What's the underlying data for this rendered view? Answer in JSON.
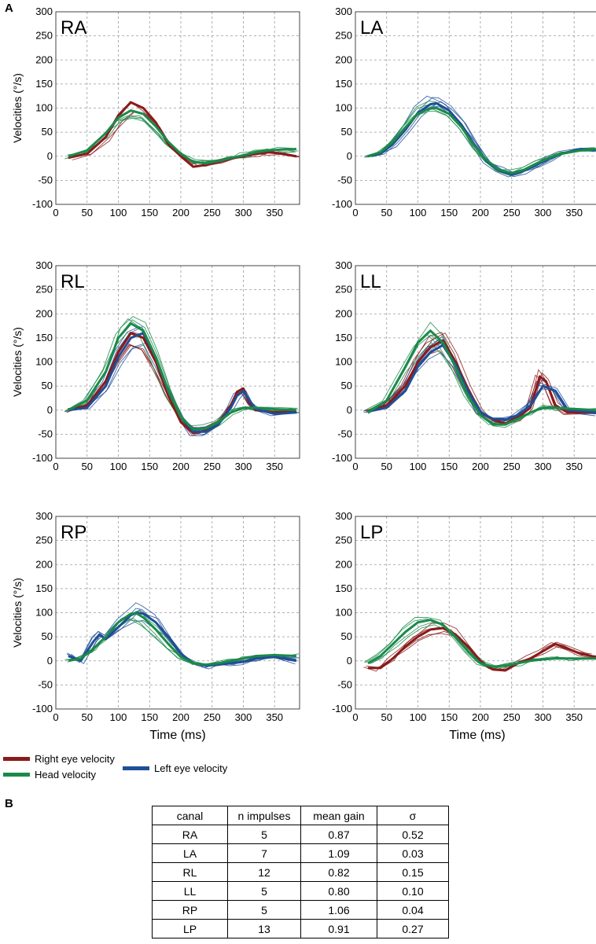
{
  "figure": {
    "panel_a_letter": "A",
    "panel_b_letter": "B"
  },
  "colors": {
    "right_eye": "#8b1a1a",
    "head": "#1a8a4a",
    "left_eye": "#1f4e96",
    "grid": "#9a9a9a"
  },
  "legend": {
    "right_eye": "Right eye velocity",
    "head": "Head velocity",
    "left_eye": "Left eye velocity"
  },
  "chart_data": [
    {
      "type": "line",
      "title": "RA",
      "ylabel": "Velocities (°/s)",
      "xlabel": "",
      "xlim": [
        0,
        390
      ],
      "ylim": [
        -100,
        300
      ],
      "xticks": [
        0,
        50,
        100,
        150,
        200,
        250,
        300,
        350
      ],
      "yticks": [
        -100,
        -50,
        0,
        50,
        100,
        150,
        200,
        250,
        300
      ],
      "series": [
        {
          "name": "Right eye velocity",
          "role": "right",
          "x": [
            20,
            50,
            80,
            100,
            120,
            140,
            160,
            180,
            200,
            220,
            240,
            260,
            280,
            300,
            320,
            340,
            360,
            385
          ],
          "values": [
            -3,
            5,
            40,
            85,
            112,
            100,
            70,
            25,
            0,
            -22,
            -18,
            -12,
            -5,
            0,
            5,
            8,
            6,
            0
          ]
        },
        {
          "name": "Head velocity",
          "role": "head",
          "x": [
            20,
            50,
            80,
            100,
            120,
            140,
            160,
            180,
            200,
            220,
            240,
            260,
            280,
            300,
            320,
            340,
            360,
            385
          ],
          "values": [
            0,
            12,
            48,
            80,
            95,
            88,
            62,
            30,
            5,
            -12,
            -15,
            -10,
            -4,
            2,
            8,
            12,
            14,
            15
          ]
        }
      ]
    },
    {
      "type": "line",
      "title": "LA",
      "ylabel": "Velocities (°/s)",
      "xlabel": "",
      "xlim": [
        0,
        390
      ],
      "ylim": [
        -100,
        300
      ],
      "xticks": [
        0,
        50,
        100,
        150,
        200,
        250,
        300,
        350
      ],
      "yticks": [
        -100,
        -50,
        0,
        50,
        100,
        150,
        200,
        250,
        300
      ],
      "series": [
        {
          "name": "Left eye velocity",
          "role": "left",
          "x": [
            20,
            40,
            60,
            80,
            100,
            120,
            130,
            150,
            170,
            190,
            210,
            230,
            250,
            270,
            290,
            310,
            330,
            360,
            385
          ],
          "values": [
            0,
            5,
            25,
            55,
            90,
            108,
            110,
            95,
            65,
            25,
            -10,
            -30,
            -38,
            -30,
            -18,
            -5,
            5,
            15,
            12
          ]
        },
        {
          "name": "Head velocity",
          "role": "head",
          "x": [
            20,
            40,
            60,
            80,
            100,
            120,
            130,
            150,
            170,
            190,
            210,
            230,
            250,
            270,
            290,
            310,
            330,
            360,
            385
          ],
          "values": [
            0,
            8,
            30,
            60,
            88,
            100,
            100,
            88,
            60,
            22,
            -8,
            -28,
            -35,
            -28,
            -15,
            -3,
            5,
            12,
            15
          ]
        }
      ]
    },
    {
      "type": "line",
      "title": "RL",
      "ylabel": "Velocities (°/s)",
      "xlabel": "",
      "xlim": [
        0,
        390
      ],
      "ylim": [
        -100,
        300
      ],
      "xticks": [
        0,
        50,
        100,
        150,
        200,
        250,
        300,
        350
      ],
      "yticks": [
        -100,
        -50,
        0,
        50,
        100,
        150,
        200,
        250,
        300
      ],
      "series": [
        {
          "name": "Right eye velocity",
          "role": "right",
          "x": [
            20,
            50,
            80,
            100,
            120,
            140,
            160,
            180,
            200,
            220,
            240,
            260,
            280,
            290,
            300,
            310,
            320,
            350,
            385
          ],
          "values": [
            0,
            10,
            60,
            120,
            160,
            150,
            100,
            30,
            -25,
            -48,
            -42,
            -30,
            10,
            38,
            45,
            15,
            0,
            -5,
            -3
          ]
        },
        {
          "name": "Left eye velocity",
          "role": "left",
          "x": [
            20,
            50,
            80,
            100,
            120,
            140,
            160,
            180,
            200,
            220,
            240,
            260,
            280,
            290,
            300,
            310,
            320,
            350,
            385
          ],
          "values": [
            0,
            5,
            50,
            110,
            150,
            160,
            110,
            40,
            -15,
            -45,
            -45,
            -30,
            5,
            30,
            40,
            20,
            2,
            -8,
            -5
          ]
        },
        {
          "name": "Head velocity",
          "role": "head",
          "x": [
            20,
            50,
            80,
            100,
            120,
            140,
            160,
            180,
            200,
            220,
            240,
            260,
            280,
            290,
            300,
            310,
            320,
            350,
            385
          ],
          "values": [
            0,
            20,
            80,
            150,
            180,
            165,
            110,
            40,
            -15,
            -40,
            -38,
            -25,
            -5,
            0,
            5,
            5,
            5,
            2,
            0
          ]
        }
      ]
    },
    {
      "type": "line",
      "title": "LL",
      "ylabel": "Velocities (°/s)",
      "xlabel": "",
      "xlim": [
        0,
        390
      ],
      "ylim": [
        -100,
        300
      ],
      "xticks": [
        0,
        50,
        100,
        150,
        200,
        250,
        300,
        350
      ],
      "yticks": [
        -100,
        -50,
        0,
        50,
        100,
        150,
        200,
        250,
        300
      ],
      "series": [
        {
          "name": "Right eye velocity",
          "role": "right",
          "x": [
            20,
            50,
            80,
            100,
            120,
            140,
            160,
            180,
            200,
            220,
            240,
            260,
            280,
            295,
            305,
            320,
            340,
            385
          ],
          "values": [
            -3,
            10,
            50,
            100,
            130,
            145,
            100,
            45,
            -5,
            -20,
            -28,
            -15,
            5,
            70,
            60,
            10,
            -5,
            -5
          ]
        },
        {
          "name": "Left eye velocity",
          "role": "left",
          "x": [
            20,
            50,
            80,
            100,
            120,
            140,
            160,
            180,
            200,
            220,
            240,
            260,
            280,
            300,
            320,
            340,
            385
          ],
          "values": [
            -3,
            5,
            40,
            90,
            120,
            135,
            95,
            40,
            -5,
            -18,
            -20,
            -10,
            10,
            50,
            40,
            0,
            -5
          ]
        },
        {
          "name": "Head velocity",
          "role": "head",
          "x": [
            20,
            50,
            80,
            100,
            120,
            140,
            160,
            180,
            200,
            220,
            240,
            260,
            280,
            300,
            320,
            340,
            385
          ],
          "values": [
            -5,
            20,
            90,
            140,
            165,
            140,
            90,
            30,
            -10,
            -30,
            -30,
            -18,
            -5,
            5,
            5,
            3,
            0
          ]
        }
      ]
    },
    {
      "type": "line",
      "title": "RP",
      "ylabel": "Velocities (°/s)",
      "xlabel": "Time (ms)",
      "xlim": [
        0,
        390
      ],
      "ylim": [
        -100,
        300
      ],
      "xticks": [
        0,
        50,
        100,
        150,
        200,
        250,
        300,
        350
      ],
      "yticks": [
        -100,
        -50,
        0,
        50,
        100,
        150,
        200,
        250,
        300
      ],
      "series": [
        {
          "name": "Left eye velocity",
          "role": "left",
          "x": [
            20,
            40,
            60,
            70,
            80,
            100,
            120,
            130,
            140,
            160,
            180,
            200,
            220,
            240,
            260,
            280,
            300,
            320,
            350,
            385
          ],
          "values": [
            10,
            0,
            40,
            55,
            45,
            70,
            95,
            100,
            98,
            80,
            50,
            15,
            -5,
            -10,
            -8,
            -5,
            -2,
            5,
            8,
            0
          ]
        },
        {
          "name": "Head velocity",
          "role": "head",
          "x": [
            20,
            40,
            60,
            70,
            80,
            100,
            120,
            130,
            140,
            160,
            180,
            200,
            220,
            240,
            260,
            280,
            300,
            320,
            350,
            385
          ],
          "values": [
            0,
            5,
            25,
            38,
            50,
            80,
            98,
            98,
            90,
            65,
            35,
            8,
            -5,
            -8,
            -5,
            0,
            5,
            10,
            12,
            10
          ]
        }
      ]
    },
    {
      "type": "line",
      "title": "LP",
      "ylabel": "Velocities (°/s)",
      "xlabel": "Time (ms)",
      "xlim": [
        0,
        390
      ],
      "ylim": [
        -100,
        300
      ],
      "xticks": [
        0,
        50,
        100,
        150,
        200,
        250,
        300,
        350
      ],
      "yticks": [
        -100,
        -50,
        0,
        50,
        100,
        150,
        200,
        250,
        300
      ],
      "series": [
        {
          "name": "Right eye velocity",
          "role": "right",
          "x": [
            20,
            40,
            60,
            80,
            100,
            120,
            140,
            160,
            180,
            200,
            220,
            240,
            260,
            280,
            300,
            320,
            340,
            360,
            385
          ],
          "values": [
            -15,
            -15,
            5,
            30,
            50,
            65,
            68,
            55,
            30,
            0,
            -18,
            -20,
            -5,
            5,
            20,
            35,
            25,
            15,
            8
          ]
        },
        {
          "name": "Head velocity",
          "role": "head",
          "x": [
            20,
            40,
            60,
            80,
            100,
            120,
            140,
            160,
            180,
            200,
            220,
            240,
            260,
            280,
            300,
            320,
            340,
            360,
            385
          ],
          "values": [
            -5,
            10,
            35,
            60,
            80,
            85,
            75,
            50,
            20,
            -5,
            -12,
            -10,
            -5,
            0,
            3,
            5,
            5,
            5,
            5
          ]
        }
      ]
    },
    {
      "type": "table",
      "columns": [
        "canal",
        "n impulses",
        "mean gain",
        "σ"
      ],
      "rows": [
        [
          "RA",
          "5",
          "0.87",
          "0.52"
        ],
        [
          "LA",
          "7",
          "1.09",
          "0.03"
        ],
        [
          "RL",
          "12",
          "0.82",
          "0.15"
        ],
        [
          "LL",
          "5",
          "0.80",
          "0.10"
        ],
        [
          "RP",
          "5",
          "1.06",
          "0.04"
        ],
        [
          "LP",
          "13",
          "0.91",
          "0.27"
        ]
      ]
    }
  ]
}
